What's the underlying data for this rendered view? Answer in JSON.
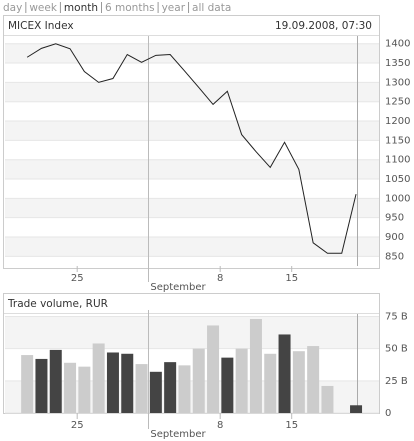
{
  "nav": {
    "items": [
      "day",
      "week",
      "month",
      "6 months",
      "year",
      "all data"
    ],
    "selected": 2
  },
  "chart_data": [
    {
      "type": "line",
      "title": "MICEX Index",
      "timestamp": "19.09.2008, 07:30",
      "x_group_label": "September",
      "categories": [
        null,
        null,
        null,
        null,
        "25",
        null,
        null,
        null,
        null,
        null,
        null,
        null,
        null,
        null,
        "8",
        null,
        null,
        null,
        null,
        "15",
        null,
        null,
        null,
        null
      ],
      "series": [
        {
          "name": "MICEX Index",
          "color": "#222222",
          "values": [
            1365,
            1388,
            1400,
            1387,
            1328,
            1300,
            1310,
            1372,
            1352,
            1370,
            1372,
            1330,
            1287,
            1243,
            1277,
            1165,
            1121,
            1080,
            1145,
            1075,
            885,
            858,
            858,
            1011
          ]
        }
      ],
      "ylim": [
        825,
        1420
      ],
      "yticks": [
        850,
        900,
        950,
        1000,
        1050,
        1100,
        1150,
        1200,
        1250,
        1300,
        1350,
        1400
      ],
      "grid": true
    },
    {
      "type": "bar",
      "title": "Trade volume, RUR",
      "x_group_label": "September",
      "categories": [
        null,
        null,
        null,
        null,
        "25",
        null,
        null,
        null,
        null,
        null,
        null,
        null,
        null,
        null,
        "8",
        null,
        null,
        null,
        null,
        "15",
        null,
        null,
        null,
        null
      ],
      "series": [
        {
          "name": "Trade volume, RUR",
          "values": [
            45,
            42,
            49,
            39,
            36,
            54,
            47,
            46,
            38,
            32,
            39.5,
            37,
            50,
            68,
            43,
            50,
            73,
            46,
            61,
            48,
            52,
            21,
            null,
            6
          ],
          "colors": [
            "#cccccc",
            "#444444",
            "#444444",
            "#cccccc",
            "#cccccc",
            "#cccccc",
            "#444444",
            "#444444",
            "#cccccc",
            "#444444",
            "#444444",
            "#cccccc",
            "#cccccc",
            "#cccccc",
            "#444444",
            "#cccccc",
            "#cccccc",
            "#cccccc",
            "#444444",
            "#cccccc",
            "#cccccc",
            "#cccccc",
            "#cccccc",
            "#444444"
          ]
        }
      ],
      "ylim": [
        0,
        80
      ],
      "yticks": [
        0,
        {
          "value": 25,
          "label": "25 B"
        },
        {
          "value": 50,
          "label": "50 B"
        },
        {
          "value": 75,
          "label": "75 B"
        }
      ],
      "grid": true
    }
  ]
}
